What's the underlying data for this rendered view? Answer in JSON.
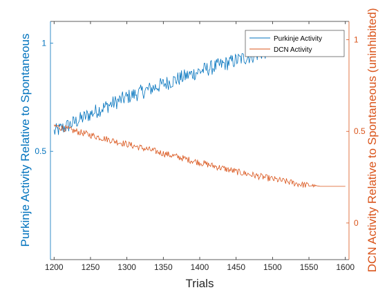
{
  "chart_data": {
    "type": "line",
    "xlabel": "Trials",
    "ylabel_left": "Purkinje Activity Relative to Spontaneous",
    "ylabel_right": "DCN Activity Relative to Spontaneous (uninhibited)",
    "xlim": [
      1195,
      1605
    ],
    "ylim_left": [
      0.0,
      1.1
    ],
    "ylim_right": [
      -0.2,
      1.1
    ],
    "xticks": [
      1200,
      1250,
      1300,
      1350,
      1400,
      1450,
      1500,
      1550,
      1600
    ],
    "yticks_left": [
      0.5,
      1
    ],
    "yticks_right": [
      0,
      0.5,
      1
    ],
    "ytick_labels_left": [
      "0.5",
      "1"
    ],
    "ytick_labels_right": [
      "0",
      "0.5",
      "1"
    ],
    "grid": false,
    "legend_position": "top-right",
    "series": [
      {
        "name": "Purkinje Activity",
        "axis": "left",
        "color": "#0072BD",
        "noise": 0.035,
        "x": [
          1200,
          1220,
          1260,
          1300,
          1350,
          1400,
          1450,
          1490,
          1500
        ],
        "y": [
          0.59,
          0.62,
          0.69,
          0.75,
          0.81,
          0.87,
          0.92,
          0.96,
          0.97
        ]
      },
      {
        "name": "DCN Activity",
        "axis": "right",
        "color": "#D95319",
        "noise": 0.018,
        "x": [
          1200,
          1220,
          1260,
          1300,
          1350,
          1400,
          1450,
          1500,
          1540,
          1565,
          1600
        ],
        "y": [
          0.53,
          0.51,
          0.47,
          0.43,
          0.38,
          0.33,
          0.28,
          0.24,
          0.21,
          0.2,
          0.2
        ]
      }
    ],
    "colors": {
      "left_axis": "#0072BD",
      "right_axis": "#D95319",
      "axis_bottom": "#262626"
    }
  }
}
